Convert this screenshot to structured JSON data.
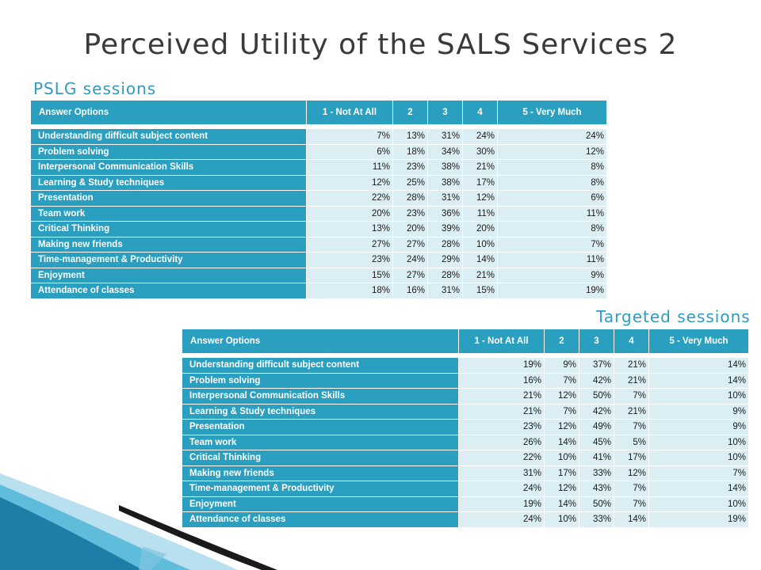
{
  "slide": {
    "title": "Perceived Utility of the SALS Services 2",
    "section1": "PSLG sessions",
    "section2": "Targeted sessions"
  },
  "headers": [
    "Answer Options",
    "1 - Not At All",
    "2",
    "3",
    "4",
    "5 - Very Much"
  ],
  "pslg": {
    "rows": [
      {
        "label": "Understanding difficult subject content",
        "values": [
          "7%",
          "13%",
          "31%",
          "24%",
          "24%"
        ]
      },
      {
        "label": "Problem solving",
        "values": [
          "6%",
          "18%",
          "34%",
          "30%",
          "12%"
        ]
      },
      {
        "label": "Interpersonal Communication Skills",
        "values": [
          "11%",
          "23%",
          "38%",
          "21%",
          "8%"
        ]
      },
      {
        "label": "Learning & Study techniques",
        "values": [
          "12%",
          "25%",
          "38%",
          "17%",
          "8%"
        ]
      },
      {
        "label": "Presentation",
        "values": [
          "22%",
          "28%",
          "31%",
          "12%",
          "6%"
        ]
      },
      {
        "label": "Team work",
        "values": [
          "20%",
          "23%",
          "36%",
          "11%",
          "11%"
        ]
      },
      {
        "label": "Critical Thinking",
        "values": [
          "13%",
          "20%",
          "39%",
          "20%",
          "8%"
        ]
      },
      {
        "label": "Making new friends",
        "values": [
          "27%",
          "27%",
          "28%",
          "10%",
          "7%"
        ]
      },
      {
        "label": "Time-management & Productivity",
        "values": [
          "23%",
          "24%",
          "29%",
          "14%",
          "11%"
        ]
      },
      {
        "label": "Enjoyment",
        "values": [
          "15%",
          "27%",
          "28%",
          "21%",
          "9%"
        ]
      },
      {
        "label": "Attendance of classes",
        "values": [
          "18%",
          "16%",
          "31%",
          "15%",
          "19%"
        ]
      }
    ]
  },
  "targeted": {
    "rows": [
      {
        "label": "Understanding difficult subject content",
        "values": [
          "19%",
          "9%",
          "37%",
          "21%",
          "14%"
        ]
      },
      {
        "label": "Problem solving",
        "values": [
          "16%",
          "7%",
          "42%",
          "21%",
          "14%"
        ]
      },
      {
        "label": "Interpersonal Communication Skills",
        "values": [
          "21%",
          "12%",
          "50%",
          "7%",
          "10%"
        ]
      },
      {
        "label": "Learning & Study techniques",
        "values": [
          "21%",
          "7%",
          "42%",
          "21%",
          "9%"
        ]
      },
      {
        "label": "Presentation",
        "values": [
          "23%",
          "12%",
          "49%",
          "7%",
          "9%"
        ]
      },
      {
        "label": "Team work",
        "values": [
          "26%",
          "14%",
          "45%",
          "5%",
          "10%"
        ]
      },
      {
        "label": "Critical Thinking",
        "values": [
          "22%",
          "10%",
          "41%",
          "17%",
          "10%"
        ]
      },
      {
        "label": "Making new friends",
        "values": [
          "31%",
          "17%",
          "33%",
          "12%",
          "7%"
        ]
      },
      {
        "label": "Time-management & Productivity",
        "values": [
          "24%",
          "12%",
          "43%",
          "7%",
          "14%"
        ]
      },
      {
        "label": "Enjoyment",
        "values": [
          "19%",
          "14%",
          "50%",
          "7%",
          "10%"
        ]
      },
      {
        "label": "Attendance of classes",
        "values": [
          "24%",
          "10%",
          "33%",
          "14%",
          "19%"
        ]
      }
    ]
  },
  "colors": {
    "header_bg": "#2a9fbf",
    "cell_bg": "#daeef3",
    "accent_text": "#2d9cc0",
    "decor": [
      "#1f7ea8",
      "#4ab3d6",
      "#9ad3e8",
      "#1a1a1a"
    ]
  }
}
